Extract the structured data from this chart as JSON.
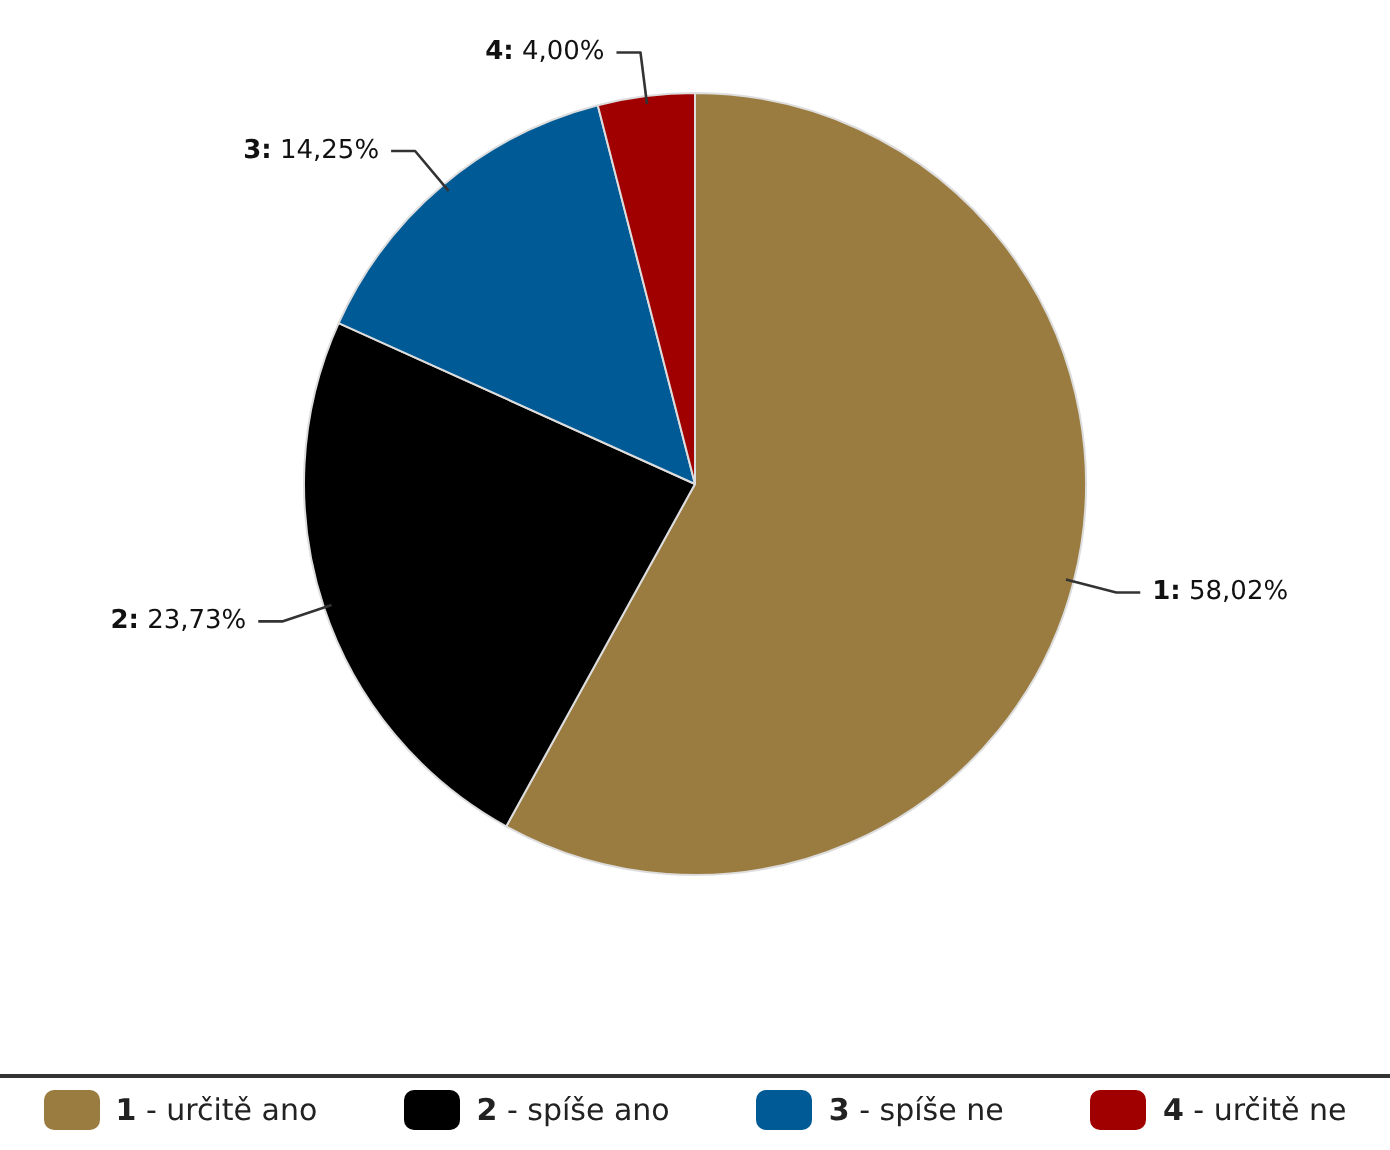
{
  "chart_data": {
    "type": "pie",
    "categories": [
      "1 - určitě ano",
      "2 - spíše ano",
      "3 - spíše ne",
      "4 - určitě ne"
    ],
    "values": [
      58.02,
      23.73,
      14.25,
      4.0
    ],
    "colors": [
      "#9a7b40",
      "#000000",
      "#005a96",
      "#a00000"
    ],
    "value_labels": [
      "1: 58,02%",
      "2: 23,73%",
      "3: 14,25%",
      "4: 4,00%"
    ],
    "legend": "bottom"
  }
}
